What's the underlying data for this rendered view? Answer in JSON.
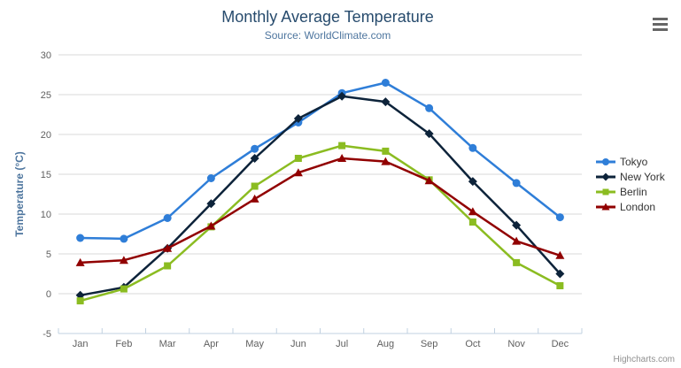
{
  "credits": {
    "label": "Highcharts.com"
  },
  "icons": {
    "export_menu": "hamburger-menu-icon"
  },
  "colors": {
    "title": "#274b6d",
    "subtitle": "#4d759e",
    "axis_title": "#4d759e",
    "tick_label": "#606060",
    "grid_line": "#d8d8d8",
    "axis_line": "#c0d0e0",
    "legend_text": "#333333",
    "credits": "#909090",
    "menu_icon": "#666666"
  },
  "chart_data": {
    "type": "line",
    "title": "Monthly Average Temperature",
    "subtitle": "Source: WorldClimate.com",
    "categories": [
      "Jan",
      "Feb",
      "Mar",
      "Apr",
      "May",
      "Jun",
      "Jul",
      "Aug",
      "Sep",
      "Oct",
      "Nov",
      "Dec"
    ],
    "xlabel": "",
    "ylabel": "Temperature (°C)",
    "ylim": [
      -5,
      30
    ],
    "ytick_step": 5,
    "grid": true,
    "legend_position": "right",
    "series": [
      {
        "name": "Tokyo",
        "color": "#2f7ed8",
        "marker": "circle",
        "values": [
          7.0,
          6.9,
          9.5,
          14.5,
          18.2,
          21.5,
          25.2,
          26.5,
          23.3,
          18.3,
          13.9,
          9.6
        ]
      },
      {
        "name": "New York",
        "color": "#0d233a",
        "marker": "diamond",
        "values": [
          -0.2,
          0.8,
          5.7,
          11.3,
          17.0,
          22.0,
          24.8,
          24.1,
          20.1,
          14.1,
          8.6,
          2.5
        ]
      },
      {
        "name": "Berlin",
        "color": "#8bbc21",
        "marker": "square",
        "values": [
          -0.9,
          0.6,
          3.5,
          8.4,
          13.5,
          17.0,
          18.6,
          17.9,
          14.3,
          9.0,
          3.9,
          1.0
        ]
      },
      {
        "name": "London",
        "color": "#910000",
        "marker": "triangle",
        "values": [
          3.9,
          4.2,
          5.7,
          8.5,
          11.9,
          15.2,
          17.0,
          16.6,
          14.2,
          10.3,
          6.6,
          4.8
        ]
      }
    ]
  }
}
